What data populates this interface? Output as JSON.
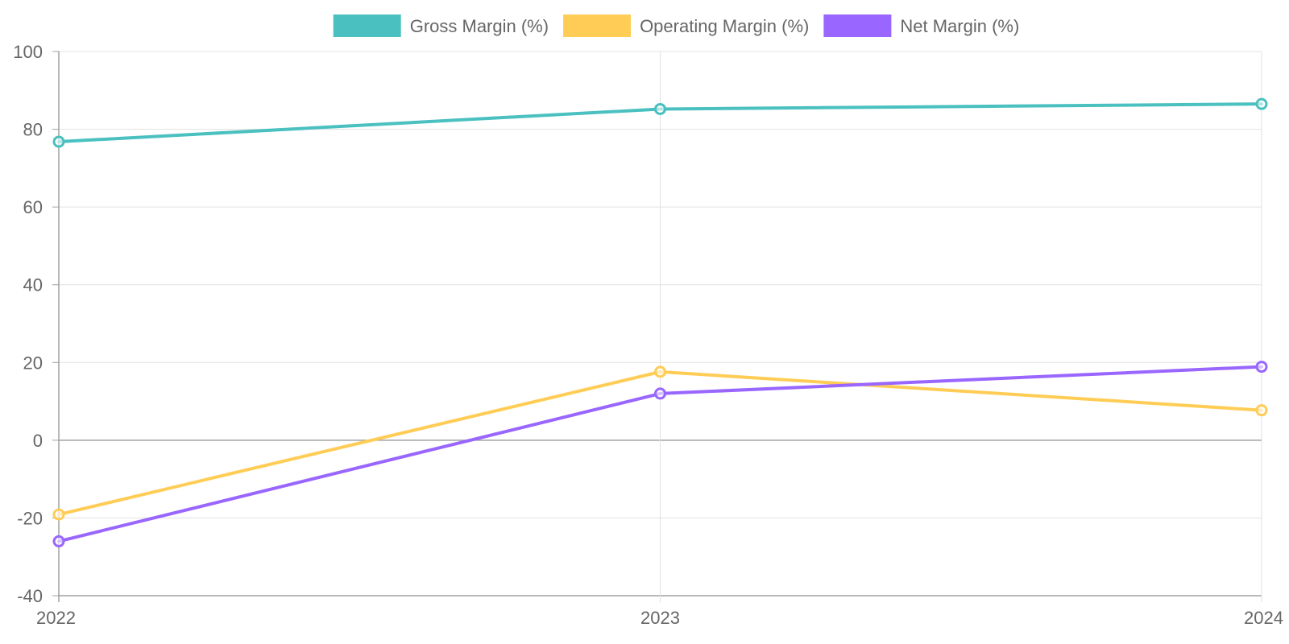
{
  "chart_data": {
    "type": "line",
    "title": "",
    "xlabel": "",
    "ylabel": "",
    "categories": [
      "2022",
      "2023",
      "2024"
    ],
    "ylim": [
      -40,
      100
    ],
    "yticks": [
      100,
      80,
      60,
      40,
      20,
      0,
      -20,
      -40
    ],
    "grid": true,
    "legend_position": "top-center",
    "series": [
      {
        "name": "Gross Margin (%)",
        "color": "#4bc0c0",
        "values": [
          76.8,
          85.2,
          86.5
        ]
      },
      {
        "name": "Operating Margin (%)",
        "color": "#ffcd56",
        "values": [
          -19.1,
          17.6,
          7.7
        ]
      },
      {
        "name": "Net Margin (%)",
        "color": "#9966ff",
        "values": [
          -26.0,
          12.0,
          18.9
        ]
      }
    ]
  }
}
